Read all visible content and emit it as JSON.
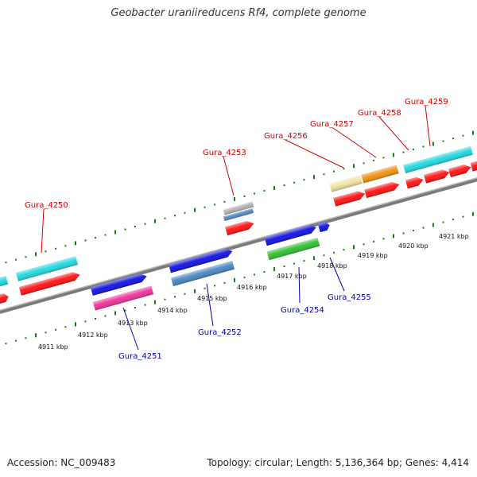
{
  "title": "Geobacter uraniireducens Rf4, complete genome",
  "accession": "Accession: NC_009483",
  "topology": "Topology: circular; Length: 5,136,364 bp; Genes: 4,414",
  "top_genes": [
    {
      "label": "Gura_4250"
    },
    {
      "label": "Gura_4253"
    },
    {
      "label": "Gura_4256"
    },
    {
      "label": "Gura_4257"
    },
    {
      "label": "Gura_4258"
    },
    {
      "label": "Gura_4259"
    }
  ],
  "bottom_genes": [
    {
      "label": "Gura_4251"
    },
    {
      "label": "Gura_4252"
    },
    {
      "label": "Gura_4254"
    },
    {
      "label": "Gura_4255"
    }
  ],
  "kbp_labels": [
    "4911 kbp",
    "4912 kbp",
    "4913 kbp",
    "4914 kbp",
    "4915 kbp",
    "4916 kbp",
    "4917 kbp",
    "4918 kbp",
    "4919 kbp",
    "4920 kbp",
    "4921 kbp"
  ],
  "colors": {
    "red": "#ff1010",
    "cyan": "#20d8e0",
    "blue": "#1010e0",
    "steel": "#4a86c0",
    "magenta": "#f0309a",
    "green": "#30c030",
    "orange": "#f09010",
    "khaki": "#efe4a0",
    "gray": "#b0b0b0",
    "backbone": "#7a7a7a",
    "tick": "#1a7a1a"
  }
}
